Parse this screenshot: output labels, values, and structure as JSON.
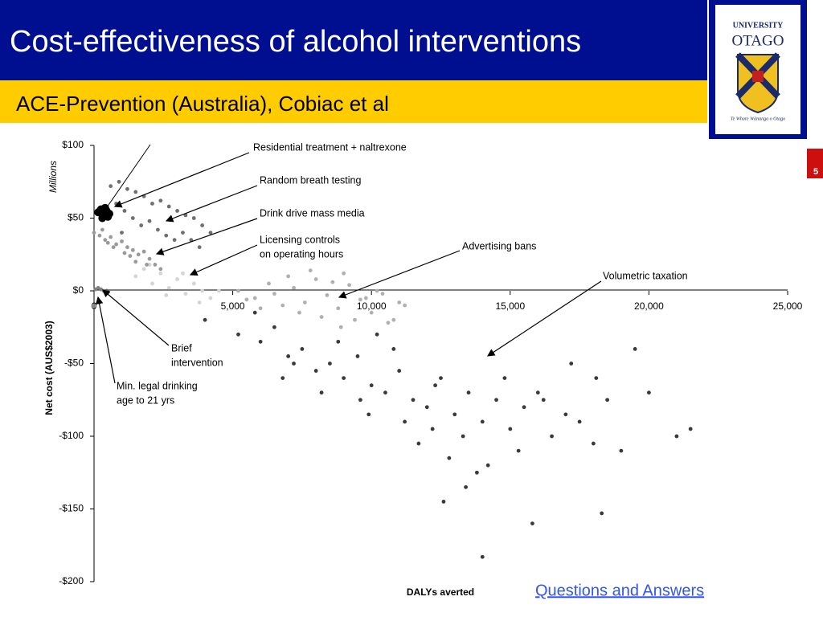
{
  "slide": {
    "title": "Cost-effectiveness of alcohol interventions",
    "subtitle": "ACE-Prevention (Australia), Cobiac et al",
    "logo": {
      "line1": "UNIVERSITY",
      "line2": "OTAGO",
      "motto": "Te Whare Wānanga o Otago"
    },
    "page_number": "5",
    "link": "Questions and Answers"
  },
  "chart_data": {
    "type": "scatter",
    "x_label": "DALYs averted",
    "y_label": "Net cost (AUS$2003)",
    "y_unit_label": "Millions",
    "xlim": [
      0,
      25000
    ],
    "xticks": [
      0,
      {
        "value": 5000,
        "label": "5,000"
      },
      {
        "value": 10000,
        "label": "10,000"
      },
      {
        "value": 15000,
        "label": "15,000"
      },
      {
        "value": 20000,
        "label": "20,000"
      },
      {
        "value": 25000,
        "label": "25,000"
      }
    ],
    "ylim": [
      -200,
      100
    ],
    "yticks": [
      {
        "value": 100,
        "label": "$100"
      },
      {
        "value": 50,
        "label": "$50"
      },
      {
        "value": 0,
        "label": "$0"
      },
      {
        "value": -50,
        "label": "-$50"
      },
      {
        "value": -100,
        "label": "-$100"
      },
      {
        "value": -150,
        "label": "-$150"
      },
      {
        "value": -200,
        "label": "-$200"
      }
    ],
    "annotations": [
      [
        "Residential treatment + naltrexone"
      ],
      [
        "Random breath testing"
      ],
      [
        "Drink drive mass media"
      ],
      [
        "Licensing controls",
        "on operating hours"
      ],
      [
        "Advertising bans"
      ],
      [
        "Volumetric taxation"
      ],
      [
        "Brief",
        "intervention"
      ],
      [
        "Min. legal drinking",
        "age to 21 yrs"
      ]
    ],
    "series": [
      {
        "name": "Volumetric taxation",
        "color": "#3a3a3a",
        "x": [
          4000,
          5200,
          6000,
          6500,
          7000,
          7500,
          8000,
          8500,
          9000,
          9500,
          10000,
          10500,
          11000,
          11500,
          12000,
          12500,
          13000,
          13500,
          14000,
          14500,
          15000,
          15500,
          16000,
          16500,
          17000,
          17500,
          18000,
          18500,
          19000,
          20000,
          21000,
          21500,
          5800,
          7200,
          8800,
          9600,
          10800,
          11200,
          12300,
          12800,
          13300,
          14200,
          14800,
          15300,
          16200,
          17200,
          18300,
          19500,
          6800,
          8200,
          9900,
          11700,
          13800,
          15800,
          12600,
          10200,
          18100,
          14000,
          12200,
          13400
        ],
        "values": [
          -20,
          -30,
          -35,
          -25,
          -45,
          -40,
          -55,
          -50,
          -60,
          -45,
          -65,
          -70,
          -55,
          -75,
          -80,
          -60,
          -85,
          -70,
          -90,
          -75,
          -95,
          -80,
          -70,
          -100,
          -85,
          -90,
          -105,
          -75,
          -110,
          -70,
          -100,
          -95,
          -15,
          -50,
          -35,
          -75,
          -40,
          -90,
          -65,
          -115,
          -100,
          -120,
          -60,
          -110,
          -75,
          -50,
          -153,
          -40,
          -60,
          -70,
          -85,
          -105,
          -125,
          -160,
          -145,
          -30,
          -60,
          -183,
          -95,
          -135
        ]
      },
      {
        "name": "Advertising bans",
        "color": "#b0b0b0",
        "x": [
          5200,
          5800,
          6300,
          6800,
          7200,
          7600,
          8000,
          8400,
          8800,
          9200,
          9600,
          10000,
          10400,
          10800,
          11200,
          6000,
          7000,
          8200,
          9000,
          9800,
          10600,
          6500,
          7400,
          8600,
          9400,
          11000,
          5500,
          7800,
          8900,
          10200
        ],
        "values": [
          0,
          -5,
          5,
          -10,
          2,
          -8,
          8,
          -3,
          -12,
          4,
          -6,
          -15,
          -2,
          -20,
          -10,
          -12,
          10,
          -18,
          12,
          -5,
          -22,
          -2,
          -15,
          6,
          -20,
          -8,
          -6,
          14,
          -25,
          0
        ]
      },
      {
        "name": "Licensing controls on operating hours",
        "color": "#d4d4d4",
        "x": [
          1500,
          1800,
          2100,
          2400,
          2700,
          3000,
          3300,
          3600,
          3900,
          4200,
          2000,
          2600,
          3200,
          3800,
          4500
        ],
        "values": [
          10,
          15,
          5,
          12,
          2,
          8,
          -2,
          5,
          0,
          -5,
          18,
          -3,
          12,
          -8,
          0
        ]
      },
      {
        "name": "Drink drive mass media",
        "color": "#9a9a9a",
        "x": [
          0,
          200,
          400,
          600,
          800,
          1000,
          1200,
          1400,
          1600,
          1800,
          2000,
          2200,
          2400,
          300,
          700,
          1100,
          1500,
          1900,
          500,
          1300
        ],
        "values": [
          40,
          38,
          35,
          37,
          32,
          34,
          30,
          28,
          25,
          27,
          22,
          18,
          15,
          42,
          30,
          26,
          20,
          18,
          33,
          24
        ]
      },
      {
        "name": "Random breath testing",
        "color": "#707070",
        "x": [
          600,
          900,
          1200,
          1500,
          1800,
          2100,
          2400,
          2700,
          3000,
          3300,
          3600,
          3900,
          4200,
          800,
          1100,
          1400,
          1700,
          2000,
          2300,
          2600,
          2900,
          3200,
          3500,
          3800,
          1000
        ],
        "values": [
          72,
          75,
          70,
          68,
          65,
          60,
          62,
          58,
          55,
          52,
          50,
          45,
          40,
          60,
          55,
          50,
          45,
          48,
          42,
          38,
          35,
          40,
          35,
          30,
          40
        ]
      },
      {
        "name": "Residential treatment + naltrexone",
        "color": "#000000",
        "x": [
          150,
          250,
          350,
          450,
          550,
          300,
          400,
          500
        ],
        "values": [
          54,
          56,
          52,
          55,
          53,
          50,
          57,
          51
        ]
      },
      {
        "name": "Brief intervention",
        "color": "#808080",
        "x": [
          50,
          150,
          250,
          350
        ],
        "values": [
          1,
          2,
          1,
          0
        ]
      },
      {
        "name": "Min. legal drinking age to 21 yrs",
        "color": "#606060",
        "x": [
          400,
          450,
          500
        ],
        "values": [
          -1,
          0,
          -1
        ]
      }
    ]
  }
}
